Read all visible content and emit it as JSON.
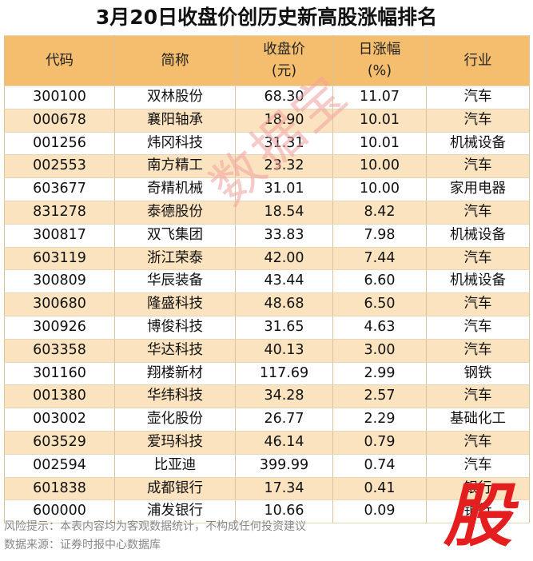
{
  "title": "3月20日收盘价创历史新高股涨幅排名",
  "headers": {
    "code": "代码",
    "name": "简称",
    "price_l1": "收盘价",
    "price_l2": "(元)",
    "change_l1": "日涨幅",
    "change_l2": "(%)",
    "industry": "行业"
  },
  "rows": [
    {
      "code": "300100",
      "name": "双林股份",
      "price": "68.30",
      "change": "11.07",
      "industry": "汽车"
    },
    {
      "code": "000678",
      "name": "襄阳轴承",
      "price": "18.90",
      "change": "10.01",
      "industry": "汽车"
    },
    {
      "code": "001256",
      "name": "炜冈科技",
      "price": "31.31",
      "change": "10.01",
      "industry": "机械设备"
    },
    {
      "code": "002553",
      "name": "南方精工",
      "price": "23.32",
      "change": "10.00",
      "industry": "汽车"
    },
    {
      "code": "603677",
      "name": "奇精机械",
      "price": "31.01",
      "change": "10.00",
      "industry": "家用电器"
    },
    {
      "code": "831278",
      "name": "泰德股份",
      "price": "18.54",
      "change": "8.42",
      "industry": "汽车"
    },
    {
      "code": "300817",
      "name": "双飞集团",
      "price": "33.83",
      "change": "7.98",
      "industry": "机械设备"
    },
    {
      "code": "603119",
      "name": "浙江荣泰",
      "price": "42.00",
      "change": "7.44",
      "industry": "汽车"
    },
    {
      "code": "300809",
      "name": "华辰装备",
      "price": "43.44",
      "change": "6.60",
      "industry": "机械设备"
    },
    {
      "code": "300680",
      "name": "隆盛科技",
      "price": "48.68",
      "change": "6.50",
      "industry": "汽车"
    },
    {
      "code": "300926",
      "name": "博俊科技",
      "price": "31.65",
      "change": "4.63",
      "industry": "汽车"
    },
    {
      "code": "603358",
      "name": "华达科技",
      "price": "40.13",
      "change": "3.00",
      "industry": "汽车"
    },
    {
      "code": "301160",
      "name": "翔楼新材",
      "price": "117.69",
      "change": "2.99",
      "industry": "钢铁"
    },
    {
      "code": "001380",
      "name": "华纬科技",
      "price": "34.28",
      "change": "2.57",
      "industry": "汽车"
    },
    {
      "code": "003002",
      "name": "壶化股份",
      "price": "26.77",
      "change": "2.29",
      "industry": "基础化工"
    },
    {
      "code": "603529",
      "name": "爱玛科技",
      "price": "46.14",
      "change": "0.79",
      "industry": "汽车"
    },
    {
      "code": "002594",
      "name": "比亚迪",
      "price": "399.99",
      "change": "0.74",
      "industry": "汽车"
    },
    {
      "code": "601838",
      "name": "成都银行",
      "price": "17.34",
      "change": "0.41",
      "industry": "银行"
    },
    {
      "code": "600000",
      "name": "浦发银行",
      "price": "10.66",
      "change": "0.09",
      "industry": "银行"
    }
  ],
  "footer": {
    "risk": "风险提示：本表内容均为客观数据统计，不构成任何投资建议",
    "source": "数据来源：证券时报中心数据库"
  },
  "watermark": "数据宝",
  "logo": "股"
}
